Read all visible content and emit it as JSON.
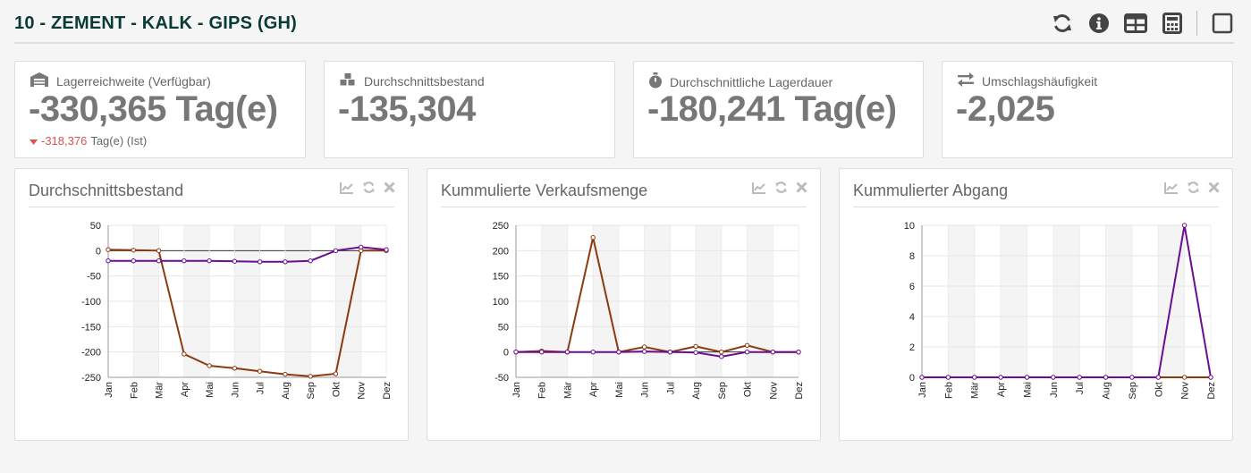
{
  "header": {
    "title": "10 - ZEMENT - KALK - GIPS (GH)",
    "icons": [
      "refresh-icon",
      "info-icon",
      "table-icon",
      "calculator-icon",
      "maximize-icon"
    ]
  },
  "kpis": [
    {
      "icon": "warehouse-icon",
      "label": "Lagerreichweite (Verfügbar)",
      "value": "-330,365 Tag(e)",
      "sub_value": "-318,376",
      "sub_suffix": "Tag(e) (Ist)"
    },
    {
      "icon": "cubes-icon",
      "label": "Durchschnittsbestand",
      "value": "-135,304"
    },
    {
      "icon": "stopwatch-icon",
      "label": "Durchschnittliche Lagerdauer",
      "value": "-180,241 Tag(e)"
    },
    {
      "icon": "exchange-icon",
      "label": "Umschlagshäufigkeit",
      "value": "-2,025"
    }
  ],
  "colors": {
    "series_a": "#8b3a0e",
    "series_b": "#6a0d91",
    "negative": "#d9534f",
    "title": "#083a36"
  },
  "panels": [
    {
      "title": "Durchschnittsbestand",
      "chart_data": {
        "type": "line",
        "categories": [
          "Jan",
          "Feb",
          "Mär",
          "Apr",
          "Mai",
          "Jun",
          "Jul",
          "Aug",
          "Sep",
          "Okt",
          "Nov",
          "Dez"
        ],
        "ylim": [
          -250,
          50
        ],
        "yticks": [
          50,
          0,
          -50,
          -100,
          -150,
          -200,
          -250
        ],
        "series": [
          {
            "values": [
              2,
              1,
              0,
              -204,
              -227,
              -232,
              -238,
              -244,
              -248,
              -243,
              0,
              0
            ]
          },
          {
            "values": [
              -20,
              -20,
              -20,
              -20,
              -20,
              -21,
              -22,
              -22,
              -20,
              0,
              7,
              2
            ]
          }
        ]
      }
    },
    {
      "title": "Kummulierte Verkaufsmenge",
      "chart_data": {
        "type": "line",
        "categories": [
          "Jan",
          "Feb",
          "Mär",
          "Apr",
          "Mai",
          "Jun",
          "Jul",
          "Aug",
          "Sep",
          "Okt",
          "Nov",
          "Dez"
        ],
        "ylim": [
          -50,
          250
        ],
        "yticks": [
          250,
          200,
          150,
          100,
          50,
          0,
          -50
        ],
        "series": [
          {
            "values": [
              0,
              2,
              0,
              226,
              0,
              10,
              0,
              11,
              0,
              13,
              0,
              0
            ]
          },
          {
            "values": [
              0,
              0,
              0,
              0,
              0,
              1,
              0,
              -1,
              -9,
              0,
              0,
              0
            ]
          }
        ]
      }
    },
    {
      "title": "Kummulierter Abgang",
      "chart_data": {
        "type": "line",
        "categories": [
          "Jan",
          "Feb",
          "Mär",
          "Apr",
          "Mai",
          "Jun",
          "Jul",
          "Aug",
          "Sep",
          "Okt",
          "Nov",
          "Dez"
        ],
        "ylim": [
          0,
          10
        ],
        "yticks": [
          10,
          8,
          6,
          4,
          2,
          0
        ],
        "series": [
          {
            "values": [
              0,
              0,
              0,
              0,
              0,
              0,
              0,
              0,
              0,
              0,
              0,
              0
            ]
          },
          {
            "values": [
              0,
              0,
              0,
              0,
              0,
              0,
              0,
              0,
              0,
              0,
              10,
              0
            ]
          }
        ]
      }
    }
  ]
}
